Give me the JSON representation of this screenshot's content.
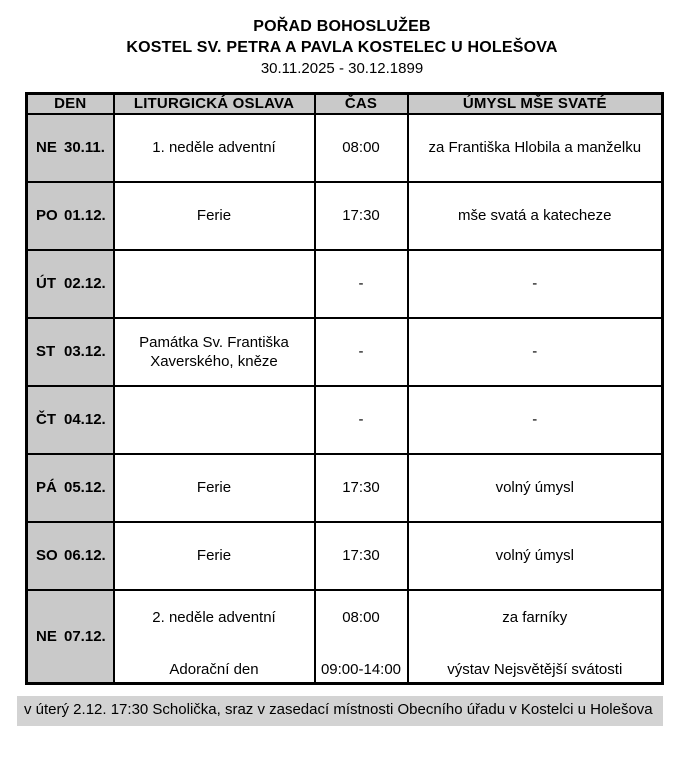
{
  "title": {
    "line1": "POŘAD BOHOSLUŽEB",
    "line2": "KOSTEL SV. PETRA A PAVLA KOSTELEC U HOLEŠOVA",
    "date_range": "30.11.2025 - 30.12.1899"
  },
  "table": {
    "headers": {
      "den": "DEN",
      "oslava": "LITURGICKÁ OSLAVA",
      "cas": "ČAS",
      "umysl": "ÚMYSL MŠE SVATÉ"
    },
    "rows": [
      {
        "day": "NE",
        "date": "30.11.",
        "celebration": "1. neděle adventní",
        "time": "08:00",
        "intention": "za Františka Hlobila a manželku"
      },
      {
        "day": "PO",
        "date": "01.12.",
        "celebration": "Ferie",
        "time": "17:30",
        "intention": "mše svatá a katecheze"
      },
      {
        "day": "ÚT",
        "date": "02.12.",
        "celebration": "",
        "time": "-",
        "intention": "-"
      },
      {
        "day": "ST",
        "date": "03.12.",
        "celebration": "Památka Sv. Františka Xaverského, kněze",
        "time": "-",
        "intention": "-"
      },
      {
        "day": "ČT",
        "date": "04.12.",
        "celebration": "",
        "time": "-",
        "intention": "-"
      },
      {
        "day": "PÁ",
        "date": "05.12.",
        "celebration": "Ferie",
        "time": "17:30",
        "intention": "volný úmysl"
      },
      {
        "day": "SO",
        "date": "06.12.",
        "celebration": "Ferie",
        "time": "17:30",
        "intention": "volný úmysl"
      },
      {
        "day": "NE",
        "date": "07.12.",
        "celebration": "2. neděle adventní",
        "time": "08:00",
        "intention": "za farníky",
        "celebration2": "Adorační den",
        "time2": "09:00-14:00",
        "intention2": "výstav Nejsvětější svátosti"
      }
    ]
  },
  "footer": {
    "note": "v úterý 2.12. 17:30 Scholička, sraz v zasedací místnosti Obecního úřadu v Kostelci u Holešova"
  },
  "colors": {
    "cell_gray": "#c9c9c9",
    "footer_gray": "#d3d3d3",
    "border": "#000000"
  }
}
